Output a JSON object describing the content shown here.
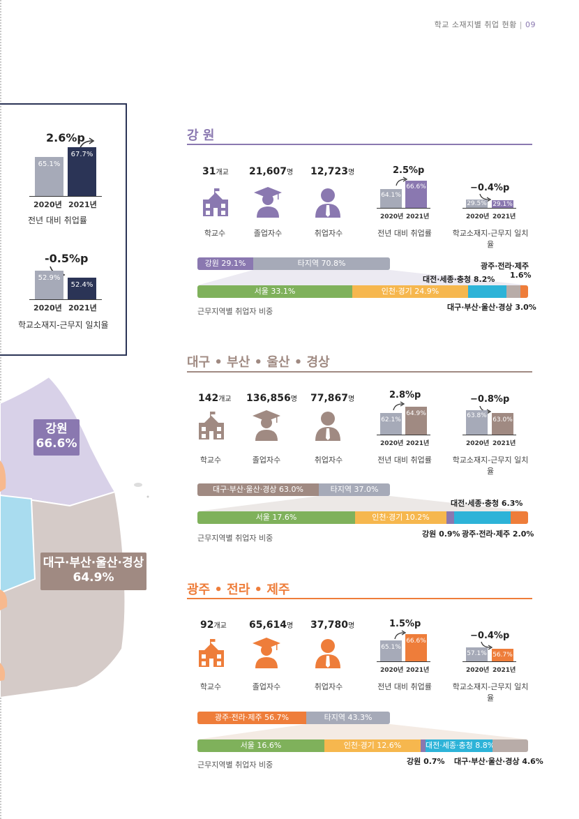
{
  "header": {
    "title": "학교 소재지별 취업 현황",
    "page": "09"
  },
  "summary": {
    "employment": {
      "delta": "2.6%p",
      "v2020": "65.1%",
      "v2021": "67.7%",
      "y2020": "2020년",
      "y2021": "2021년",
      "label": "전년 대비 취업률"
    },
    "match": {
      "delta": "-0.5%p",
      "v2020": "52.9%",
      "v2021": "52.4%",
      "y2020": "2020년",
      "y2021": "2021년",
      "label": "학교소재지-근무지 일치율"
    }
  },
  "map": {
    "gangwon": {
      "name": "강원",
      "value": "66.6%"
    },
    "daegu": {
      "name": "대구·부산·울산·경상",
      "value": "64.9%"
    }
  },
  "common": {
    "schools": "학교수",
    "grads": "졸업자수",
    "employed": "취업자수",
    "rate": "전년 대비 취업률",
    "match": "학교소재지-근무지 일치율",
    "caption": "근무지역별 취업자 비중",
    "unit_school": "개교",
    "unit_person": "명",
    "y2020": "2020년",
    "y2021": "2021년"
  },
  "sections": {
    "gangwon": {
      "title": "강 원",
      "color": "#8a78b0",
      "schools": "31",
      "grads": "21,607",
      "employed": "12,723",
      "rate": {
        "delta": "2.5%p",
        "v2020": "64.1%",
        "v2021": "66.6%"
      },
      "match": {
        "delta": "−0.4%p",
        "v2020": "29.5%",
        "v2021": "29.1%"
      },
      "local": "강원 29.1%",
      "other": "타지역 70.8%",
      "segs": [
        "서울 33.1%",
        "인천·경기 24.9%"
      ],
      "notes": [
        "광주·전라·제주",
        "1.6%",
        "대전·세종·충청 8.2%",
        "대구·부산·울산·경상 3.0%"
      ]
    },
    "daegu": {
      "title": "대구 • 부산 • 울산 • 경상",
      "color": "#a08a82",
      "schools": "142",
      "grads": "136,856",
      "employed": "77,867",
      "rate": {
        "delta": "2.8%p",
        "v2020": "62.1%",
        "v2021": "64.9%"
      },
      "match": {
        "delta": "−0.8%p",
        "v2020": "63.8%",
        "v2021": "63.0%"
      },
      "local": "대구·부산·울산·경상 63.0%",
      "other": "타지역 37.0%",
      "segs": [
        "서울 17.6%",
        "인천·경기 10.2%"
      ],
      "notes": [
        "대전·세종·충청 6.3%",
        "강원 0.9%",
        "광주·전라·제주 2.0%"
      ]
    },
    "gwangju": {
      "title": "광주 • 전라 • 제주",
      "color": "#ee7d3a",
      "schools": "92",
      "grads": "65,614",
      "employed": "37,780",
      "rate": {
        "delta": "1.5%p",
        "v2020": "65.1%",
        "v2021": "66.6%"
      },
      "match": {
        "delta": "−0.4%p",
        "v2020": "57.1%",
        "v2021": "56.7%"
      },
      "local": "광주·전라·제주 56.7%",
      "other": "타지역 43.3%",
      "segs": [
        "서울 16.6%",
        "인천·경기 12.6%",
        "대전·세종·충청 8.8%"
      ],
      "notes": [
        "강원 0.7%",
        "대구·부산·울산·경상 4.6%"
      ]
    }
  }
}
